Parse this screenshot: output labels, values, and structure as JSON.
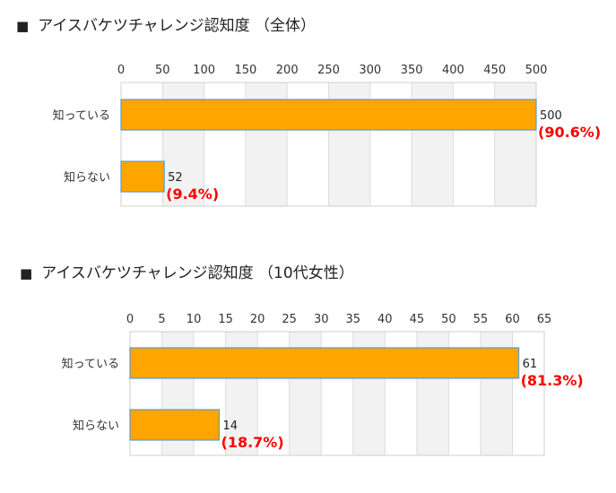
{
  "chart_data": [
    {
      "type": "bar",
      "orientation": "horizontal",
      "title": "アイスバケツチャレンジ認知度 （全体）",
      "title_marker": "■",
      "categories": [
        "知っている",
        "知らない"
      ],
      "values": [
        500,
        52
      ],
      "value_labels": [
        "500",
        "52"
      ],
      "percent_labels": [
        "(90.6%)",
        "(9.4%)"
      ],
      "xlim": [
        0,
        500
      ],
      "ticks": [
        "0",
        "50",
        "100",
        "150",
        "200",
        "250",
        "300",
        "350",
        "400",
        "450",
        "500"
      ],
      "bar_color": "#ffa500",
      "percent_color": "#ff0000"
    },
    {
      "type": "bar",
      "orientation": "horizontal",
      "title": "アイスバケツチャレンジ認知度 （10代女性）",
      "title_marker": "■",
      "categories": [
        "知っている",
        "知らない"
      ],
      "values": [
        61,
        14
      ],
      "value_labels": [
        "61",
        "14"
      ],
      "percent_labels": [
        "(81.3%)",
        "(18.7%)"
      ],
      "xlim": [
        0,
        65
      ],
      "ticks": [
        "0",
        "5",
        "10",
        "15",
        "20",
        "25",
        "30",
        "35",
        "40",
        "45",
        "50",
        "55",
        "60",
        "65"
      ],
      "bar_color": "#ffa500",
      "percent_color": "#ff0000"
    }
  ]
}
